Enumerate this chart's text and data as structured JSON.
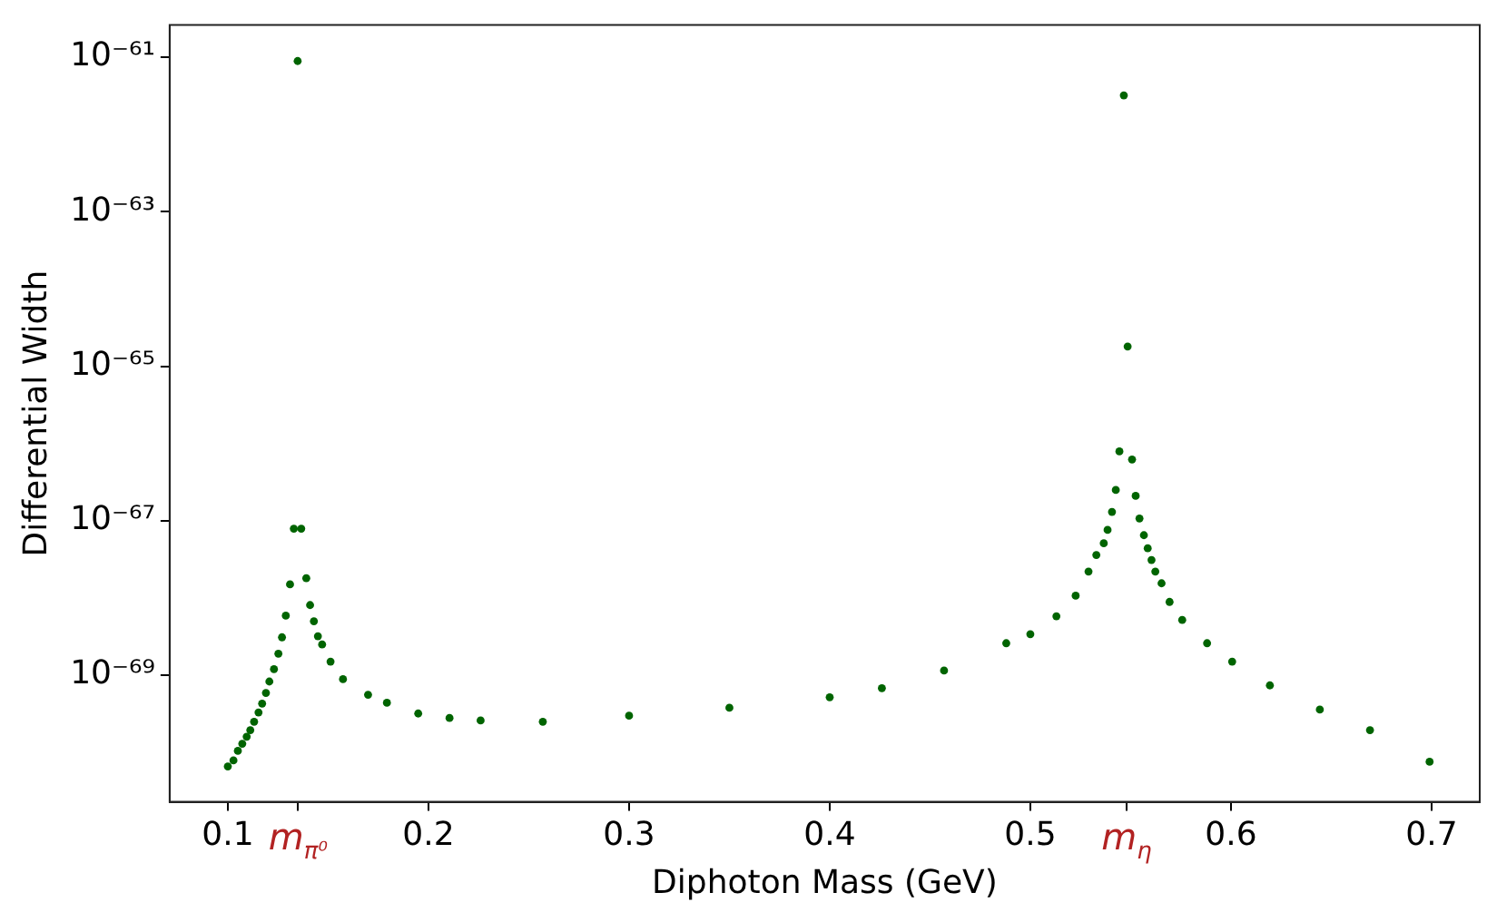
{
  "chart_data": {
    "type": "scatter",
    "xlabel": "Diphoton Mass (GeV)",
    "ylabel": "Differential Width",
    "log": "y",
    "marker": "circle",
    "xlim": [
      0.071,
      0.724
    ],
    "ylim": [
      2.3e-71,
      2.6e-61
    ],
    "xticks": [
      0.1,
      {
        "value": 0.135,
        "label": "m$_{π⁰}$"
      },
      0.2,
      0.3,
      0.4,
      0.5,
      {
        "value": 0.548,
        "label": "m$_{η}$"
      },
      0.6,
      0.7
    ],
    "yticks": [
      {
        "value": 1e-69,
        "label": "10⁻⁶⁹"
      },
      {
        "value": 1e-67,
        "label": "10⁻⁶⁷"
      },
      {
        "value": 1e-65,
        "label": "10⁻⁶⁵"
      },
      {
        "value": 1e-63,
        "label": "10⁻⁶³"
      },
      {
        "value": 1e-61,
        "label": "10⁻⁶¹"
      }
    ],
    "series": [
      {
        "color": "#006400",
        "x": [
          0.1,
          0.1028,
          0.105,
          0.1072,
          0.1094,
          0.1112,
          0.1131,
          0.1153,
          0.1171,
          0.119,
          0.1207,
          0.123,
          0.1252,
          0.127,
          0.1289,
          0.131,
          0.1329,
          0.1348,
          0.1366,
          0.1391,
          0.141,
          0.1429,
          0.1449,
          0.147,
          0.1512,
          0.1574,
          0.1699,
          0.1793,
          0.1949,
          0.2105,
          0.226,
          0.257,
          0.3,
          0.35,
          0.4,
          0.426,
          0.457,
          0.488,
          0.5,
          0.513,
          0.5226,
          0.529,
          0.5329,
          0.5366,
          0.5385,
          0.5407,
          0.5426,
          0.5444,
          0.5466,
          0.5485,
          0.5507,
          0.5525,
          0.5544,
          0.5566,
          0.5585,
          0.5604,
          0.5623,
          0.5654,
          0.5694,
          0.5757,
          0.5881,
          0.6006,
          0.6194,
          0.6443,
          0.6693,
          0.699
        ],
        "values": [
          6.6e-71,
          7.9e-71,
          1.05e-70,
          1.3e-70,
          1.6e-70,
          1.95e-70,
          2.5e-70,
          3.3e-70,
          4.3e-70,
          5.9e-70,
          8.3e-70,
          1.2e-69,
          1.9e-69,
          3.1e-69,
          5.9e-69,
          1.5e-68,
          7.9e-68,
          8.9e-62,
          7.9e-68,
          1.8e-68,
          8.1e-69,
          5e-69,
          3.2e-69,
          2.5e-69,
          1.5e-69,
          8.9e-70,
          5.6e-70,
          4.4e-70,
          3.2e-70,
          2.8e-70,
          2.6e-70,
          2.5e-70,
          3e-70,
          3.8e-70,
          5.2e-70,
          6.8e-70,
          1.15e-69,
          2.6e-69,
          3.4e-69,
          5.8e-69,
          1.07e-68,
          2.2e-68,
          3.6e-68,
          5.1e-68,
          7.6e-68,
          1.3e-67,
          2.5e-67,
          7.9e-67,
          3.2e-62,
          1.8e-65,
          6.2e-67,
          2.1e-67,
          1.07e-67,
          6.5e-68,
          4.4e-68,
          3.1e-68,
          2.2e-68,
          1.55e-68,
          8.9e-69,
          5.2e-69,
          2.6e-69,
          1.5e-69,
          7.4e-70,
          3.6e-70,
          1.95e-70,
          7.6e-71
        ]
      }
    ]
  }
}
